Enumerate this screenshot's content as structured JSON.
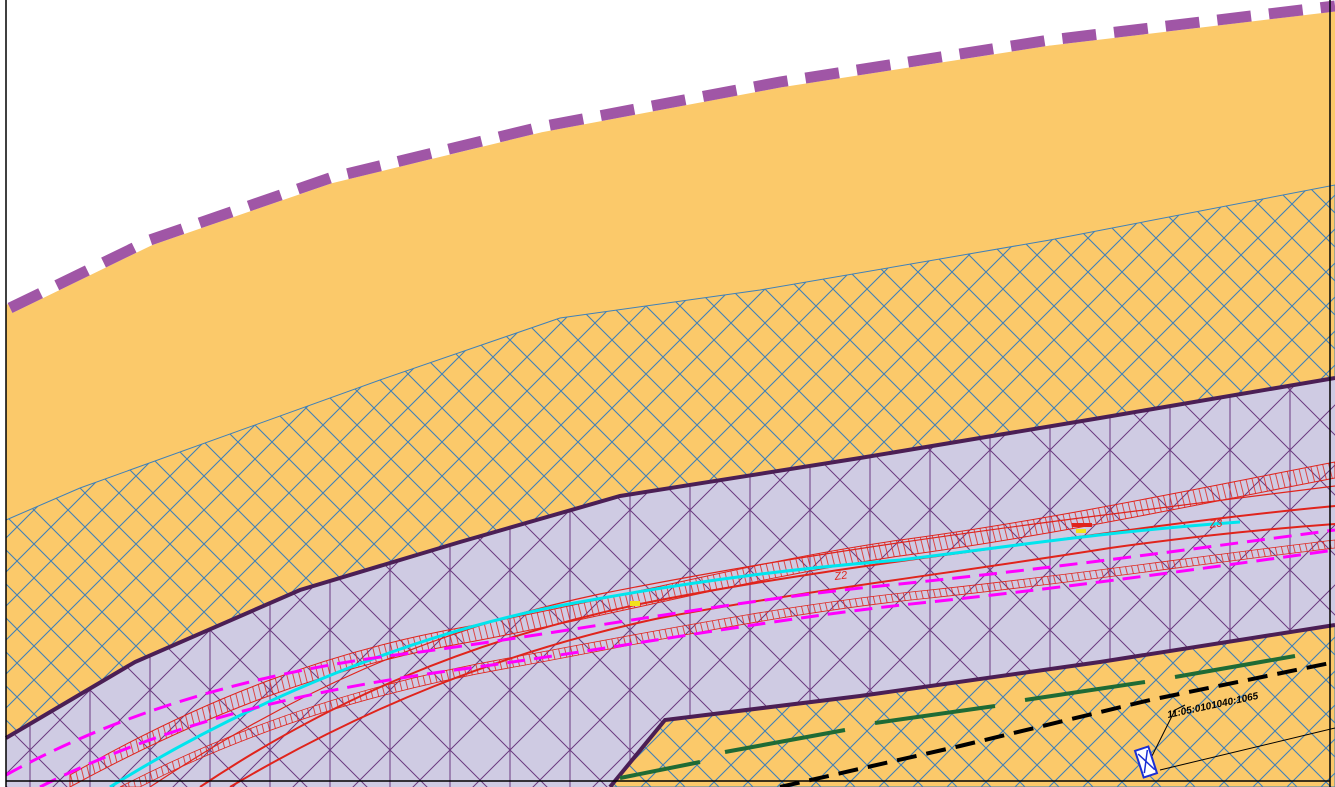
{
  "map": {
    "parcel_label": "11:05:0101040:1065",
    "axis_labels": [
      "Z2",
      "Z3"
    ],
    "colors": {
      "zone_fill": "#fbc96a",
      "hatch": "#3f80b8",
      "boundary_dash": "#a056a6",
      "corridor_fill": "#cfcbe3",
      "corridor_edge": "#4b1f55",
      "corridor_grid": "#6b3a80",
      "road_line": "#e0241c",
      "axis_dash": "#ff00ff",
      "cyan_line": "#00e5ee",
      "green_dash": "#1f6b35",
      "black_dash": "#000000",
      "marker": "#1a2fd6"
    }
  }
}
